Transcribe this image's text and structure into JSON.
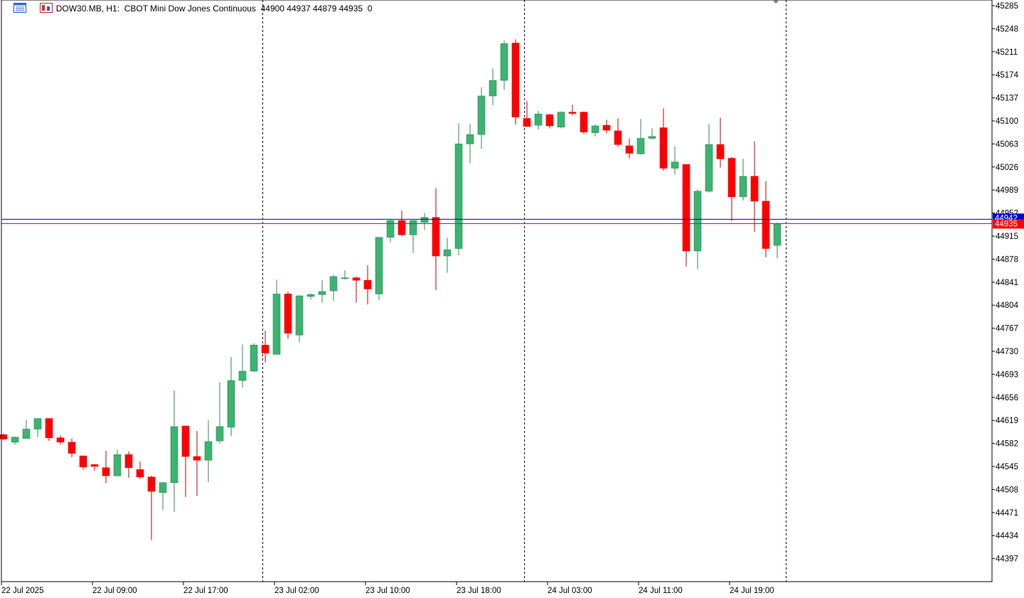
{
  "header": {
    "symbol": "DOW30.MB, H1:",
    "description": "CBOT Mini Dow Jones Continuous",
    "ohlc": "44900 44937 44879 44935",
    "volume": "0",
    "icons": [
      "chart-window-icon",
      "chart-properties-icon"
    ]
  },
  "colors": {
    "bull": "#3CB371",
    "bear": "#FF0000",
    "bull_wick": "#2E8B57",
    "bear_wick": "#C00000",
    "ask_line": "#0000CC",
    "bid_line": "#FF0000",
    "grid_separator": "#000000",
    "axis": "#000000"
  },
  "price_tags": {
    "bid": "44935",
    "ask": "44942"
  },
  "chart_data": {
    "type": "candlestick",
    "timeframe": "H1",
    "ylim": [
      44360,
      45290
    ],
    "y_ticks": [
      45285,
      45248,
      45211,
      45174,
      45137,
      45100,
      45063,
      45026,
      44989,
      44952,
      44915,
      44878,
      44841,
      44804,
      44767,
      44730,
      44693,
      44656,
      44619,
      44582,
      44545,
      44508,
      44471,
      44434,
      44397
    ],
    "x_labels": [
      {
        "index": 0,
        "label": "22 Jul 2025"
      },
      {
        "index": 8,
        "label": "22 Jul 09:00"
      },
      {
        "index": 16,
        "label": "22 Jul 17:00"
      },
      {
        "index": 24,
        "label": "23 Jul 02:00"
      },
      {
        "index": 32,
        "label": "23 Jul 10:00"
      },
      {
        "index": 40,
        "label": "23 Jul 18:00"
      },
      {
        "index": 48,
        "label": "24 Jul 03:00"
      },
      {
        "index": 56,
        "label": "24 Jul 11:00"
      },
      {
        "index": 64,
        "label": "24 Jul 19:00"
      }
    ],
    "day_separators": [
      22.75,
      45.75,
      68.75
    ],
    "candles": [
      {
        "o": 44596,
        "h": 44598,
        "l": 44587,
        "c": 44589
      },
      {
        "o": 44584,
        "h": 44593,
        "l": 44580,
        "c": 44592
      },
      {
        "o": 44590,
        "h": 44620,
        "l": 44590,
        "c": 44605
      },
      {
        "o": 44605,
        "h": 44622,
        "l": 44592,
        "c": 44622
      },
      {
        "o": 44622,
        "h": 44623,
        "l": 44586,
        "c": 44591
      },
      {
        "o": 44591,
        "h": 44595,
        "l": 44580,
        "c": 44584
      },
      {
        "o": 44584,
        "h": 44590,
        "l": 44560,
        "c": 44566
      },
      {
        "o": 44562,
        "h": 44562,
        "l": 44540,
        "c": 44544
      },
      {
        "o": 44548,
        "h": 44549,
        "l": 44538,
        "c": 44545
      },
      {
        "o": 44543,
        "h": 44570,
        "l": 44518,
        "c": 44530
      },
      {
        "o": 44530,
        "h": 44572,
        "l": 44529,
        "c": 44564
      },
      {
        "o": 44564,
        "h": 44569,
        "l": 44527,
        "c": 44543
      },
      {
        "o": 44540,
        "h": 44553,
        "l": 44525,
        "c": 44528
      },
      {
        "o": 44528,
        "h": 44530,
        "l": 44427,
        "c": 44505
      },
      {
        "o": 44503,
        "h": 44520,
        "l": 44475,
        "c": 44519
      },
      {
        "o": 44519,
        "h": 44667,
        "l": 44472,
        "c": 44609
      },
      {
        "o": 44610,
        "h": 44610,
        "l": 44496,
        "c": 44561
      },
      {
        "o": 44561,
        "h": 44602,
        "l": 44498,
        "c": 44555
      },
      {
        "o": 44555,
        "h": 44619,
        "l": 44520,
        "c": 44585
      },
      {
        "o": 44586,
        "h": 44680,
        "l": 44582,
        "c": 44609
      },
      {
        "o": 44608,
        "h": 44721,
        "l": 44594,
        "c": 44683
      },
      {
        "o": 44683,
        "h": 44741,
        "l": 44672,
        "c": 44698
      },
      {
        "o": 44698,
        "h": 44743,
        "l": 44697,
        "c": 44740
      },
      {
        "o": 44740,
        "h": 44763,
        "l": 44712,
        "c": 44727
      },
      {
        "o": 44725,
        "h": 44845,
        "l": 44725,
        "c": 44822
      },
      {
        "o": 44822,
        "h": 44826,
        "l": 44750,
        "c": 44759
      },
      {
        "o": 44756,
        "h": 44820,
        "l": 44744,
        "c": 44819
      },
      {
        "o": 44818,
        "h": 44823,
        "l": 44813,
        "c": 44821
      },
      {
        "o": 44821,
        "h": 44844,
        "l": 44808,
        "c": 44826
      },
      {
        "o": 44827,
        "h": 44853,
        "l": 44811,
        "c": 44850
      },
      {
        "o": 44848,
        "h": 44860,
        "l": 44845,
        "c": 44848
      },
      {
        "o": 44848,
        "h": 44850,
        "l": 44808,
        "c": 44844
      },
      {
        "o": 44844,
        "h": 44868,
        "l": 44805,
        "c": 44830
      },
      {
        "o": 44822,
        "h": 44910,
        "l": 44812,
        "c": 44913
      },
      {
        "o": 44913,
        "h": 44942,
        "l": 44905,
        "c": 44940
      },
      {
        "o": 44940,
        "h": 44956,
        "l": 44915,
        "c": 44917
      },
      {
        "o": 44917,
        "h": 44941,
        "l": 44888,
        "c": 44940
      },
      {
        "o": 44937,
        "h": 44952,
        "l": 44925,
        "c": 44945
      },
      {
        "o": 44945,
        "h": 44992,
        "l": 44828,
        "c": 44883
      },
      {
        "o": 44883,
        "h": 44912,
        "l": 44856,
        "c": 44893
      },
      {
        "o": 44895,
        "h": 45096,
        "l": 44884,
        "c": 45063
      },
      {
        "o": 45063,
        "h": 45095,
        "l": 45032,
        "c": 45078
      },
      {
        "o": 45078,
        "h": 45154,
        "l": 45055,
        "c": 45140
      },
      {
        "o": 45140,
        "h": 45184,
        "l": 45125,
        "c": 45165
      },
      {
        "o": 45165,
        "h": 45229,
        "l": 45150,
        "c": 45224
      },
      {
        "o": 45225,
        "h": 45231,
        "l": 45094,
        "c": 45106
      },
      {
        "o": 45104,
        "h": 45132,
        "l": 45091,
        "c": 45091
      },
      {
        "o": 45093,
        "h": 45116,
        "l": 45086,
        "c": 45111
      },
      {
        "o": 45110,
        "h": 45111,
        "l": 45088,
        "c": 45092
      },
      {
        "o": 45090,
        "h": 45115,
        "l": 45088,
        "c": 45114
      },
      {
        "o": 45114,
        "h": 45126,
        "l": 45109,
        "c": 45112
      },
      {
        "o": 45114,
        "h": 45115,
        "l": 45079,
        "c": 45082
      },
      {
        "o": 45081,
        "h": 45094,
        "l": 45075,
        "c": 45092
      },
      {
        "o": 45093,
        "h": 45102,
        "l": 45080,
        "c": 45085
      },
      {
        "o": 45084,
        "h": 45104,
        "l": 45059,
        "c": 45062
      },
      {
        "o": 45060,
        "h": 45072,
        "l": 45040,
        "c": 45048
      },
      {
        "o": 45047,
        "h": 45103,
        "l": 45046,
        "c": 45072
      },
      {
        "o": 45072,
        "h": 45088,
        "l": 45070,
        "c": 45075
      },
      {
        "o": 45089,
        "h": 45120,
        "l": 45020,
        "c": 45024
      },
      {
        "o": 45024,
        "h": 45059,
        "l": 45014,
        "c": 45034
      },
      {
        "o": 45030,
        "h": 45030,
        "l": 44866,
        "c": 44891
      },
      {
        "o": 44891,
        "h": 44990,
        "l": 44862,
        "c": 44987
      },
      {
        "o": 44987,
        "h": 45095,
        "l": 44985,
        "c": 45062
      },
      {
        "o": 45062,
        "h": 45105,
        "l": 45025,
        "c": 45039
      },
      {
        "o": 45040,
        "h": 45042,
        "l": 44939,
        "c": 44978
      },
      {
        "o": 44978,
        "h": 45039,
        "l": 44972,
        "c": 45011
      },
      {
        "o": 45011,
        "h": 45067,
        "l": 44922,
        "c": 44971
      },
      {
        "o": 44971,
        "h": 45003,
        "l": 44881,
        "c": 44895
      },
      {
        "o": 44900,
        "h": 44937,
        "l": 44879,
        "c": 44935
      }
    ]
  }
}
